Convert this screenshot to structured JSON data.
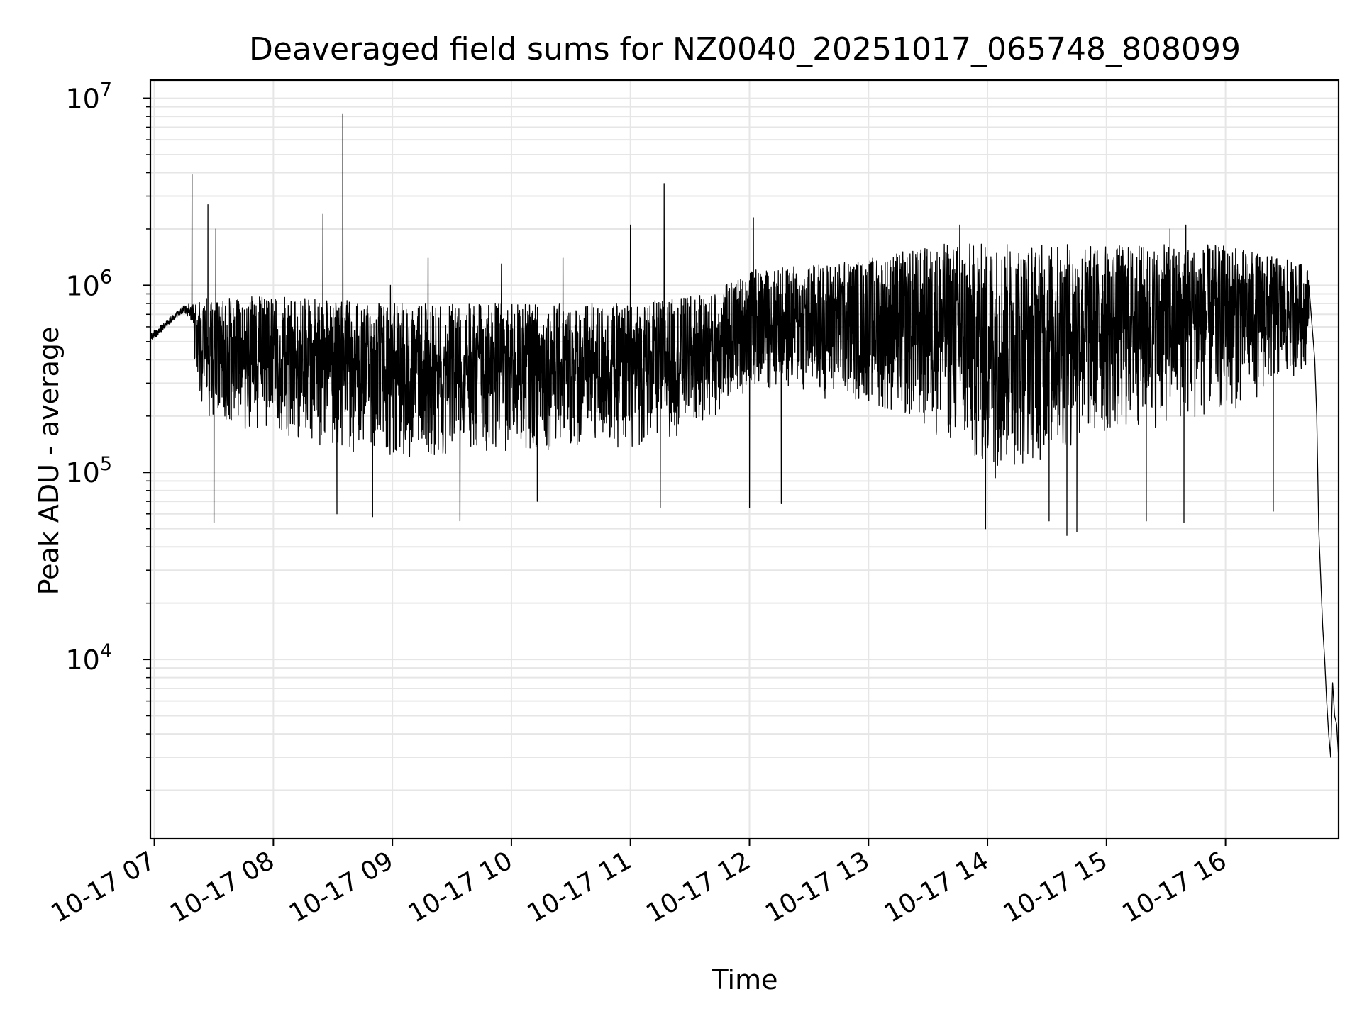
{
  "chart_data": {
    "type": "line",
    "title": "Deaveraged field sums for NZ0040_20251017_065748_808099",
    "xlabel": "Time",
    "ylabel": "Peak ADU - average",
    "yscale": "log",
    "ylim": [
      1100,
      12500000
    ],
    "xlim": [
      "2025-10-17 06:58",
      "2025-10-17 16:57"
    ],
    "grid": true,
    "line_color": "#000000",
    "grid_color": "#e6e6e6",
    "x_ticks": [
      {
        "value": "2025-10-17 07:00",
        "label": "10-17 07"
      },
      {
        "value": "2025-10-17 08:00",
        "label": "10-17 08"
      },
      {
        "value": "2025-10-17 09:00",
        "label": "10-17 09"
      },
      {
        "value": "2025-10-17 10:00",
        "label": "10-17 10"
      },
      {
        "value": "2025-10-17 11:00",
        "label": "10-17 11"
      },
      {
        "value": "2025-10-17 12:00",
        "label": "10-17 12"
      },
      {
        "value": "2025-10-17 13:00",
        "label": "10-17 13"
      },
      {
        "value": "2025-10-17 14:00",
        "label": "10-17 14"
      },
      {
        "value": "2025-10-17 15:00",
        "label": "10-17 15"
      },
      {
        "value": "2025-10-17 16:00",
        "label": "10-17 16"
      }
    ],
    "y_ticks": [
      {
        "value": 10000,
        "base": "10",
        "exp": "4"
      },
      {
        "value": 100000,
        "base": "10",
        "exp": "5"
      },
      {
        "value": 1000000,
        "base": "10",
        "exp": "6"
      },
      {
        "value": 10000000,
        "base": "10",
        "exp": "7"
      }
    ],
    "envelope": {
      "time": [
        "2025-10-17 06:58",
        "2025-10-17 07:15",
        "2025-10-17 07:25",
        "2025-10-17 08:00",
        "2025-10-17 09:00",
        "2025-10-17 10:00",
        "2025-10-17 11:00",
        "2025-10-17 11:40",
        "2025-10-17 12:00",
        "2025-10-17 13:00",
        "2025-10-17 13:40",
        "2025-10-17 14:00",
        "2025-10-17 15:00",
        "2025-10-17 16:00",
        "2025-10-17 16:40",
        "2025-10-17 16:45"
      ],
      "upper": [
        550000,
        780000,
        850000,
        880000,
        800000,
        800000,
        800000,
        900000,
        1200000,
        1400000,
        1700000,
        1700000,
        1650000,
        1650000,
        1300000,
        1100000
      ],
      "lower": [
        420000,
        620000,
        200000,
        150000,
        120000,
        130000,
        130000,
        180000,
        280000,
        230000,
        140000,
        90000,
        150000,
        200000,
        350000,
        700000
      ]
    },
    "spikes": [
      {
        "time": "2025-10-17 07:19",
        "value": 3900000
      },
      {
        "time": "2025-10-17 07:27",
        "value": 2700000
      },
      {
        "time": "2025-10-17 07:31",
        "value": 2000000
      },
      {
        "time": "2025-10-17 08:25",
        "value": 2400000
      },
      {
        "time": "2025-10-17 08:35",
        "value": 8200000
      },
      {
        "time": "2025-10-17 08:59",
        "value": 1000000
      },
      {
        "time": "2025-10-17 09:18",
        "value": 1400000
      },
      {
        "time": "2025-10-17 09:55",
        "value": 1300000
      },
      {
        "time": "2025-10-17 10:26",
        "value": 1400000
      },
      {
        "time": "2025-10-17 11:00",
        "value": 2100000
      },
      {
        "time": "2025-10-17 11:17",
        "value": 3500000
      },
      {
        "time": "2025-10-17 12:02",
        "value": 2300000
      },
      {
        "time": "2025-10-17 13:46",
        "value": 2100000
      },
      {
        "time": "2025-10-17 15:32",
        "value": 2000000
      },
      {
        "time": "2025-10-17 15:40",
        "value": 2100000
      }
    ],
    "dips": [
      {
        "time": "2025-10-17 07:30",
        "value": 54000
      },
      {
        "time": "2025-10-17 08:32",
        "value": 60000
      },
      {
        "time": "2025-10-17 08:50",
        "value": 58000
      },
      {
        "time": "2025-10-17 09:34",
        "value": 55000
      },
      {
        "time": "2025-10-17 10:13",
        "value": 70000
      },
      {
        "time": "2025-10-17 11:15",
        "value": 65000
      },
      {
        "time": "2025-10-17 12:00",
        "value": 65000
      },
      {
        "time": "2025-10-17 12:16",
        "value": 68000
      },
      {
        "time": "2025-10-17 13:59",
        "value": 50000
      },
      {
        "time": "2025-10-17 14:31",
        "value": 55000
      },
      {
        "time": "2025-10-17 14:40",
        "value": 46000
      },
      {
        "time": "2025-10-17 14:45",
        "value": 48000
      },
      {
        "time": "2025-10-17 15:20",
        "value": 55000
      },
      {
        "time": "2025-10-17 15:39",
        "value": 54000
      },
      {
        "time": "2025-10-17 16:24",
        "value": 62000
      }
    ],
    "tail": {
      "time": [
        "2025-10-17 16:42",
        "2025-10-17 16:45",
        "2025-10-17 16:46",
        "2025-10-17 16:47",
        "2025-10-17 16:49",
        "2025-10-17 16:50",
        "2025-10-17 16:51",
        "2025-10-17 16:52",
        "2025-10-17 16:53",
        "2025-10-17 16:54",
        "2025-10-17 16:55",
        "2025-10-17 16:56",
        "2025-10-17 16:57"
      ],
      "values": [
        1000000,
        400000,
        200000,
        50000,
        15000,
        10000,
        6000,
        4000,
        3000,
        7500,
        5000,
        4500,
        3000
      ]
    }
  }
}
